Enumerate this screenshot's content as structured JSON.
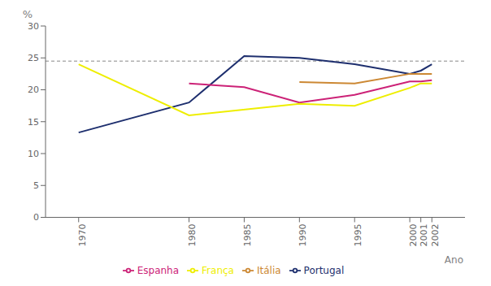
{
  "chart_data": {
    "type": "line",
    "x": [
      1970,
      1980,
      1985,
      1990,
      1995,
      2000,
      2001,
      2002
    ],
    "series": [
      {
        "name": "Portugal",
        "color": "#1e2f6e",
        "values": [
          13.3,
          18.0,
          25.3,
          25.0,
          24.0,
          22.5,
          23.0,
          24.0
        ]
      },
      {
        "name": "Espanha",
        "color": "#cc2277",
        "values": [
          null,
          21.0,
          20.4,
          18.0,
          19.2,
          21.3,
          21.3,
          21.5
        ]
      },
      {
        "name": "França",
        "color": "#eeee00",
        "values": [
          24.0,
          16.0,
          null,
          17.8,
          17.5,
          20.3,
          21.0,
          21.0
        ]
      },
      {
        "name": "Itália",
        "color": "#cc8833",
        "values": [
          null,
          null,
          null,
          21.2,
          21.0,
          22.5,
          22.5,
          22.5
        ]
      }
    ],
    "xlim": [
      1967,
      2005
    ],
    "xticks": [
      1970,
      1980,
      1985,
      1990,
      1995,
      2000,
      2001,
      2002
    ],
    "ylim": [
      0,
      30
    ],
    "yticks": [
      0,
      5,
      10,
      15,
      20,
      25,
      30
    ],
    "y_label": "%",
    "x_label": "Ano",
    "hline": 24.5,
    "legend": "bottom"
  }
}
